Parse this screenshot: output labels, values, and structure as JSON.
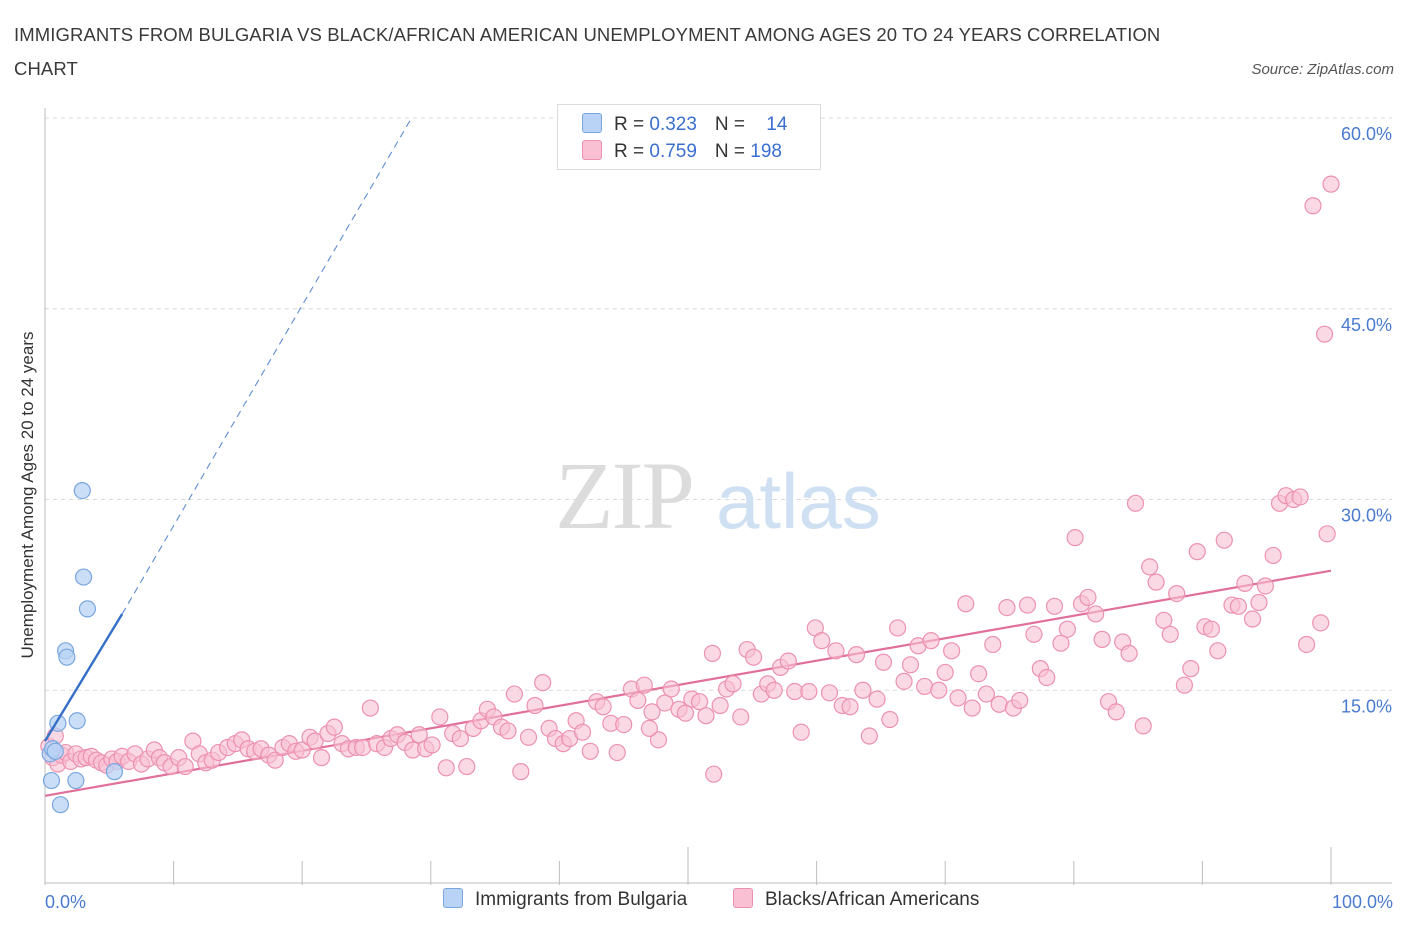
{
  "header": {
    "title": "IMMIGRANTS FROM BULGARIA VS BLACK/AFRICAN AMERICAN UNEMPLOYMENT AMONG AGES 20 TO 24 YEARS CORRELATION CHART",
    "source": "Source: ZipAtlas.com"
  },
  "watermark": {
    "zip": "ZIP",
    "atlas": "atlas"
  },
  "legend": {
    "rows": [
      {
        "r_label": "R = ",
        "r_value": "0.323",
        "n_label": "N = ",
        "n_value": "14"
      },
      {
        "r_label": "R = ",
        "r_value": "0.759",
        "n_label": "N = ",
        "n_value": "198"
      }
    ]
  },
  "bottom_legend": {
    "series1": "Immigrants from Bulgaria",
    "series2": "Blacks/African Americans"
  },
  "colors": {
    "blue_fill": "#b8d3f5",
    "blue_stroke": "#7aa6e0",
    "blue_line": "#3570c8",
    "pink_fill": "#f8c0d2",
    "pink_stroke": "#ec91b1",
    "pink_line": "#e0709a",
    "tick_text": "#4a7bd0",
    "grid": "#d9d9d9"
  },
  "chart_data": {
    "type": "scatter",
    "xlabel": "",
    "ylabel": "Unemployment Among Ages 20 to 24 years",
    "xlim": [
      0,
      100
    ],
    "ylim": [
      0,
      60
    ],
    "y_ticks": [
      "15.0%",
      "30.0%",
      "45.0%",
      "60.0%"
    ],
    "y_tick_values": [
      15,
      30,
      45,
      60
    ],
    "x_tick_labels": [
      "0.0%",
      "100.0%"
    ],
    "grid": "horizontal dashed",
    "legend_position": "top-center",
    "series": [
      {
        "name": "Immigrants from Bulgaria",
        "r": 0.323,
        "n": 14,
        "trend": {
          "x": [
            0.0,
            6.0
          ],
          "y": [
            11.0,
            21.0
          ],
          "dashed_extension_to": [
            28.5,
            60.0
          ]
        },
        "points": [
          [
            0.4,
            10.0
          ],
          [
            0.6,
            10.4
          ],
          [
            0.8,
            10.2
          ],
          [
            0.5,
            7.9
          ],
          [
            1.0,
            12.4
          ],
          [
            1.2,
            6.0
          ],
          [
            1.6,
            18.1
          ],
          [
            1.7,
            17.6
          ],
          [
            2.4,
            7.9
          ],
          [
            2.5,
            12.6
          ],
          [
            2.9,
            30.7
          ],
          [
            3.0,
            23.9
          ],
          [
            3.3,
            21.4
          ],
          [
            5.4,
            8.6
          ]
        ]
      },
      {
        "name": "Blacks/African Americans",
        "r": 0.759,
        "n": 198,
        "trend": {
          "x": [
            0.0,
            100.0
          ],
          "y": [
            6.7,
            24.4
          ]
        },
        "points": [
          [
            0.3,
            10.6
          ],
          [
            0.6,
            9.7
          ],
          [
            0.8,
            11.4
          ],
          [
            1.0,
            9.2
          ],
          [
            1.3,
            9.9
          ],
          [
            1.6,
            10.1
          ],
          [
            2.0,
            9.4
          ],
          [
            2.4,
            10.0
          ],
          [
            2.8,
            9.6
          ],
          [
            3.2,
            9.7
          ],
          [
            3.6,
            9.8
          ],
          [
            4.0,
            9.5
          ],
          [
            4.4,
            9.3
          ],
          [
            4.8,
            9.1
          ],
          [
            5.2,
            9.6
          ],
          [
            5.6,
            9.4
          ],
          [
            6.0,
            9.8
          ],
          [
            6.5,
            9.4
          ],
          [
            7.0,
            10.0
          ],
          [
            7.5,
            9.2
          ],
          [
            8.0,
            9.6
          ],
          [
            8.5,
            10.3
          ],
          [
            8.9,
            9.7
          ],
          [
            9.3,
            9.3
          ],
          [
            9.8,
            9.0
          ],
          [
            10.4,
            9.7
          ],
          [
            10.9,
            9.0
          ],
          [
            11.5,
            11.0
          ],
          [
            12.0,
            10.0
          ],
          [
            12.5,
            9.3
          ],
          [
            13.0,
            9.5
          ],
          [
            13.5,
            10.1
          ],
          [
            14.2,
            10.5
          ],
          [
            14.8,
            10.8
          ],
          [
            15.3,
            11.1
          ],
          [
            15.8,
            10.4
          ],
          [
            16.3,
            10.2
          ],
          [
            16.8,
            10.4
          ],
          [
            17.4,
            9.9
          ],
          [
            17.9,
            9.5
          ],
          [
            18.5,
            10.5
          ],
          [
            19.0,
            10.8
          ],
          [
            19.5,
            10.2
          ],
          [
            20.0,
            10.3
          ],
          [
            20.6,
            11.3
          ],
          [
            21.0,
            11.0
          ],
          [
            21.5,
            9.7
          ],
          [
            22.0,
            11.6
          ],
          [
            22.5,
            12.1
          ],
          [
            23.1,
            10.8
          ],
          [
            23.6,
            10.4
          ],
          [
            24.2,
            10.5
          ],
          [
            24.7,
            10.5
          ],
          [
            25.3,
            13.6
          ],
          [
            25.8,
            10.8
          ],
          [
            26.4,
            10.5
          ],
          [
            26.9,
            11.2
          ],
          [
            27.4,
            11.5
          ],
          [
            28.0,
            10.9
          ],
          [
            28.6,
            10.3
          ],
          [
            29.1,
            11.5
          ],
          [
            29.6,
            10.4
          ],
          [
            30.1,
            10.7
          ],
          [
            30.7,
            12.9
          ],
          [
            31.2,
            8.9
          ],
          [
            31.7,
            11.6
          ],
          [
            32.3,
            11.2
          ],
          [
            32.8,
            9.0
          ],
          [
            33.3,
            12.0
          ],
          [
            33.9,
            12.6
          ],
          [
            34.4,
            13.5
          ],
          [
            34.9,
            12.9
          ],
          [
            35.5,
            12.1
          ],
          [
            36.0,
            11.8
          ],
          [
            36.5,
            14.7
          ],
          [
            37.0,
            8.6
          ],
          [
            37.6,
            11.3
          ],
          [
            38.1,
            13.8
          ],
          [
            38.7,
            15.6
          ],
          [
            39.2,
            12.0
          ],
          [
            39.7,
            11.2
          ],
          [
            40.3,
            10.8
          ],
          [
            40.8,
            11.2
          ],
          [
            41.3,
            12.6
          ],
          [
            41.8,
            11.7
          ],
          [
            42.4,
            10.2
          ],
          [
            42.9,
            14.1
          ],
          [
            43.4,
            13.7
          ],
          [
            44.0,
            12.4
          ],
          [
            44.5,
            10.1
          ],
          [
            45.0,
            12.3
          ],
          [
            45.6,
            15.1
          ],
          [
            46.1,
            14.2
          ],
          [
            46.6,
            15.4
          ],
          [
            47.2,
            13.3
          ],
          [
            47.7,
            11.1
          ],
          [
            48.2,
            14.0
          ],
          [
            48.7,
            15.1
          ],
          [
            49.3,
            13.5
          ],
          [
            49.8,
            13.2
          ],
          [
            50.3,
            14.3
          ],
          [
            50.9,
            14.1
          ],
          [
            51.4,
            13.0
          ],
          [
            51.9,
            17.9
          ],
          [
            52.5,
            13.8
          ],
          [
            53.0,
            15.1
          ],
          [
            53.5,
            15.5
          ],
          [
            54.1,
            12.9
          ],
          [
            54.6,
            18.2
          ],
          [
            55.1,
            17.6
          ],
          [
            55.7,
            14.7
          ],
          [
            56.2,
            15.5
          ],
          [
            56.7,
            15.0
          ],
          [
            57.2,
            16.8
          ],
          [
            57.8,
            17.3
          ],
          [
            58.3,
            14.9
          ],
          [
            58.8,
            11.7
          ],
          [
            59.4,
            14.9
          ],
          [
            59.9,
            19.9
          ],
          [
            60.4,
            18.9
          ],
          [
            61.0,
            14.8
          ],
          [
            61.5,
            18.1
          ],
          [
            62.0,
            13.8
          ],
          [
            62.6,
            13.7
          ],
          [
            63.1,
            17.8
          ],
          [
            63.6,
            15.0
          ],
          [
            64.1,
            11.4
          ],
          [
            64.7,
            14.3
          ],
          [
            65.2,
            17.2
          ],
          [
            65.7,
            12.7
          ],
          [
            66.3,
            19.9
          ],
          [
            66.8,
            15.7
          ],
          [
            67.3,
            17.0
          ],
          [
            67.9,
            18.5
          ],
          [
            68.4,
            15.3
          ],
          [
            68.9,
            18.9
          ],
          [
            69.5,
            15.0
          ],
          [
            70.0,
            16.4
          ],
          [
            70.5,
            18.1
          ],
          [
            71.0,
            14.4
          ],
          [
            71.6,
            21.8
          ],
          [
            72.1,
            13.6
          ],
          [
            72.6,
            16.3
          ],
          [
            73.2,
            14.7
          ],
          [
            73.7,
            18.6
          ],
          [
            74.2,
            13.9
          ],
          [
            74.8,
            21.5
          ],
          [
            75.3,
            13.6
          ],
          [
            75.8,
            14.2
          ],
          [
            76.4,
            21.7
          ],
          [
            76.9,
            19.4
          ],
          [
            77.4,
            16.7
          ],
          [
            77.9,
            16.0
          ],
          [
            78.5,
            21.6
          ],
          [
            79.0,
            18.7
          ],
          [
            79.5,
            19.8
          ],
          [
            80.1,
            27.0
          ],
          [
            80.6,
            21.8
          ],
          [
            81.1,
            22.3
          ],
          [
            81.7,
            21.0
          ],
          [
            82.2,
            19.0
          ],
          [
            82.7,
            14.1
          ],
          [
            83.3,
            13.3
          ],
          [
            83.8,
            18.8
          ],
          [
            84.3,
            17.9
          ],
          [
            84.8,
            29.7
          ],
          [
            85.4,
            12.2
          ],
          [
            85.9,
            24.7
          ],
          [
            86.4,
            23.5
          ],
          [
            87.0,
            20.5
          ],
          [
            87.5,
            19.4
          ],
          [
            88.0,
            22.6
          ],
          [
            88.6,
            15.4
          ],
          [
            89.1,
            16.7
          ],
          [
            89.6,
            25.9
          ],
          [
            90.2,
            20.0
          ],
          [
            90.7,
            19.8
          ],
          [
            91.2,
            18.1
          ],
          [
            91.7,
            26.8
          ],
          [
            92.3,
            21.7
          ],
          [
            92.8,
            21.6
          ],
          [
            93.3,
            23.4
          ],
          [
            93.9,
            20.6
          ],
          [
            94.4,
            21.9
          ],
          [
            94.9,
            23.2
          ],
          [
            95.5,
            25.6
          ],
          [
            96.0,
            29.7
          ],
          [
            96.5,
            30.3
          ],
          [
            97.1,
            30.0
          ],
          [
            97.6,
            30.2
          ],
          [
            98.1,
            18.6
          ],
          [
            98.6,
            53.1
          ],
          [
            99.2,
            20.3
          ],
          [
            99.7,
            27.3
          ],
          [
            100.0,
            54.8
          ],
          [
            99.5,
            43.0
          ],
          [
            52.0,
            8.4
          ],
          [
            47.0,
            12.0
          ]
        ]
      }
    ]
  }
}
